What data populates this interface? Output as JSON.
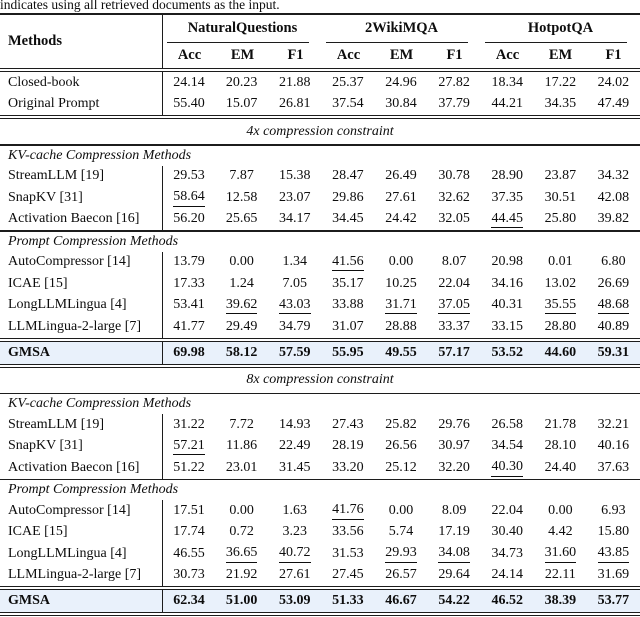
{
  "caption": "indicates using all retrieved documents as the input.",
  "table": {
    "methods_label": "Methods",
    "groups": [
      "NaturalQuestions",
      "2WikiMQA",
      "HotpotQA"
    ],
    "metrics": [
      "Acc",
      "EM",
      "F1"
    ],
    "highlight_color": "#e9f1fb",
    "baseline_rows": [
      {
        "method": "Closed-book",
        "values": [
          "24.14",
          "20.23",
          "21.88",
          "25.37",
          "24.96",
          "27.82",
          "18.34",
          "17.22",
          "24.02"
        ],
        "underline": []
      },
      {
        "method": "Original Prompt",
        "values": [
          "55.40",
          "15.07",
          "26.81",
          "37.54",
          "30.84",
          "37.79",
          "44.21",
          "34.35",
          "47.49"
        ],
        "underline": []
      }
    ],
    "sections": [
      {
        "title": "4x compression constraint",
        "subsections": [
          {
            "title": "KV-cache Compression Methods",
            "rows": [
              {
                "method": "StreamLLM [19]",
                "values": [
                  "29.53",
                  "7.87",
                  "15.38",
                  "28.47",
                  "26.49",
                  "30.78",
                  "28.90",
                  "23.87",
                  "34.32"
                ],
                "underline": []
              },
              {
                "method": "SnapKV [31]",
                "values": [
                  "58.64",
                  "12.58",
                  "23.07",
                  "29.86",
                  "27.61",
                  "32.62",
                  "37.35",
                  "30.51",
                  "42.08"
                ],
                "underline": [
                  0
                ]
              },
              {
                "method": "Activation Baecon [16]",
                "values": [
                  "56.20",
                  "25.65",
                  "34.17",
                  "34.45",
                  "24.42",
                  "32.05",
                  "44.45",
                  "25.80",
                  "39.82"
                ],
                "underline": [
                  6
                ]
              }
            ]
          },
          {
            "title": "Prompt Compression Methods",
            "rows": [
              {
                "method": "AutoCompressor [14]",
                "values": [
                  "13.79",
                  "0.00",
                  "1.34",
                  "41.56",
                  "0.00",
                  "8.07",
                  "20.98",
                  "0.01",
                  "6.80"
                ],
                "underline": [
                  3
                ]
              },
              {
                "method": "ICAE [15]",
                "values": [
                  "17.33",
                  "1.24",
                  "7.05",
                  "35.17",
                  "10.25",
                  "22.04",
                  "34.16",
                  "13.02",
                  "26.69"
                ],
                "underline": []
              },
              {
                "method": "LongLLMLingua [4]",
                "values": [
                  "53.41",
                  "39.62",
                  "43.03",
                  "33.88",
                  "31.71",
                  "37.05",
                  "40.31",
                  "35.55",
                  "48.68"
                ],
                "underline": [
                  1,
                  2,
                  4,
                  5,
                  7,
                  8
                ]
              },
              {
                "method": "LLMLingua-2-large [7]",
                "values": [
                  "41.77",
                  "29.49",
                  "34.79",
                  "31.07",
                  "28.88",
                  "33.37",
                  "33.15",
                  "28.80",
                  "40.89"
                ],
                "underline": []
              }
            ]
          }
        ],
        "gmsa": {
          "method": "GMSA",
          "values": [
            "69.98",
            "58.12",
            "57.59",
            "55.95",
            "49.55",
            "57.17",
            "53.52",
            "44.60",
            "59.31"
          ],
          "underline": []
        }
      },
      {
        "title": "8x compression constraint",
        "subsections": [
          {
            "title": "KV-cache Compression Methods",
            "rows": [
              {
                "method": "StreamLLM [19]",
                "values": [
                  "31.22",
                  "7.72",
                  "14.93",
                  "27.43",
                  "25.82",
                  "29.76",
                  "26.58",
                  "21.78",
                  "32.21"
                ],
                "underline": []
              },
              {
                "method": "SnapKV [31]",
                "values": [
                  "57.21",
                  "11.86",
                  "22.49",
                  "28.19",
                  "26.56",
                  "30.97",
                  "34.54",
                  "28.10",
                  "40.16"
                ],
                "underline": [
                  0
                ]
              },
              {
                "method": "Activation Baecon [16]",
                "values": [
                  "51.22",
                  "23.01",
                  "31.45",
                  "33.20",
                  "25.12",
                  "32.20",
                  "40.30",
                  "24.40",
                  "37.63"
                ],
                "underline": [
                  6
                ]
              }
            ]
          },
          {
            "title": "Prompt Compression Methods",
            "rows": [
              {
                "method": "AutoCompressor [14]",
                "values": [
                  "17.51",
                  "0.00",
                  "1.63",
                  "41.76",
                  "0.00",
                  "8.09",
                  "22.04",
                  "0.00",
                  "6.93"
                ],
                "underline": [
                  3
                ]
              },
              {
                "method": "ICAE [15]",
                "values": [
                  "17.74",
                  "0.72",
                  "3.23",
                  "33.56",
                  "5.74",
                  "17.19",
                  "30.40",
                  "4.42",
                  "15.80"
                ],
                "underline": []
              },
              {
                "method": "LongLLMLingua [4]",
                "values": [
                  "46.55",
                  "36.65",
                  "40.72",
                  "31.53",
                  "29.93",
                  "34.08",
                  "34.73",
                  "31.60",
                  "43.85"
                ],
                "underline": [
                  1,
                  2,
                  4,
                  5,
                  7,
                  8
                ]
              },
              {
                "method": "LLMLingua-2-large [7]",
                "values": [
                  "30.73",
                  "21.92",
                  "27.61",
                  "27.45",
                  "26.57",
                  "29.64",
                  "24.14",
                  "22.11",
                  "31.69"
                ],
                "underline": []
              }
            ]
          }
        ],
        "gmsa": {
          "method": "GMSA",
          "values": [
            "62.34",
            "51.00",
            "53.09",
            "51.33",
            "46.67",
            "54.22",
            "46.52",
            "38.39",
            "53.77"
          ],
          "underline": []
        }
      }
    ]
  }
}
